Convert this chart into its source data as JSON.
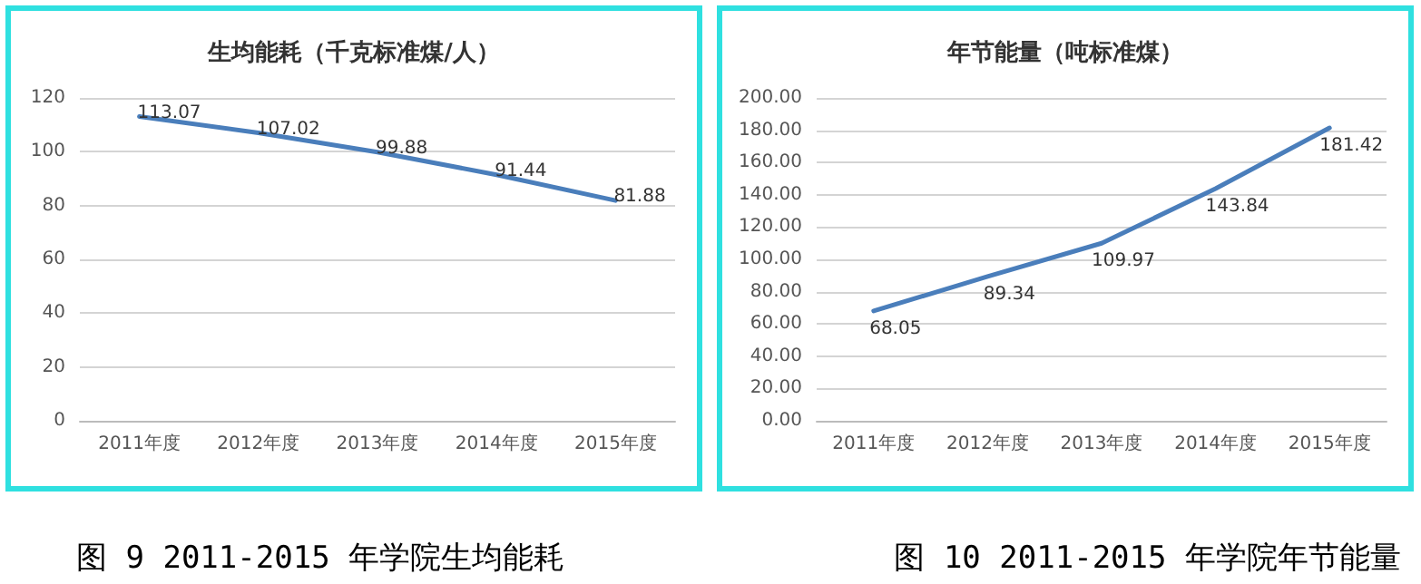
{
  "chart_data": [
    {
      "type": "line",
      "title": "生均能耗（千克标准煤/人）",
      "categories": [
        "2011年度",
        "2012年度",
        "2013年度",
        "2014年度",
        "2015年度"
      ],
      "series": [
        {
          "color": "#4a7ebb",
          "values": [
            113.07,
            107.02,
            99.88,
            91.44,
            81.88
          ]
        }
      ],
      "ylim": [
        0,
        120
      ],
      "yticks": [
        0,
        20,
        40,
        60,
        80,
        100,
        120
      ],
      "grid": "y",
      "data_labels": true,
      "marker": "none",
      "line_style": "solid",
      "annotations": [
        "图 9 2011-2015 年学院生均能耗"
      ]
    },
    {
      "type": "line",
      "title": "年节能量（吨标准煤）",
      "categories": [
        "2011年度",
        "2012年度",
        "2013年度",
        "2014年度",
        "2015年度"
      ],
      "series": [
        {
          "color": "#4a7ebb",
          "values": [
            68.05,
            89.34,
            109.97,
            143.84,
            181.42
          ]
        }
      ],
      "ylim": [
        0,
        200
      ],
      "yticks": [
        {
          "value": 0,
          "label": "0.00"
        },
        {
          "value": 20,
          "label": "20.00"
        },
        {
          "value": 40,
          "label": "40.00"
        },
        {
          "value": 60,
          "label": "60.00"
        },
        {
          "value": 80,
          "label": "80.00"
        },
        {
          "value": 100,
          "label": "100.00"
        },
        {
          "value": 120,
          "label": "120.00"
        },
        {
          "value": 140,
          "label": "140.00"
        },
        {
          "value": 160,
          "label": "160.00"
        },
        {
          "value": 180,
          "label": "180.00"
        },
        {
          "value": 200,
          "label": "200.00"
        }
      ],
      "grid": "y",
      "data_labels": true,
      "marker": "none",
      "line_style": "solid",
      "annotations": [
        "图 10 2011-2015 年学院年节能量"
      ]
    }
  ]
}
